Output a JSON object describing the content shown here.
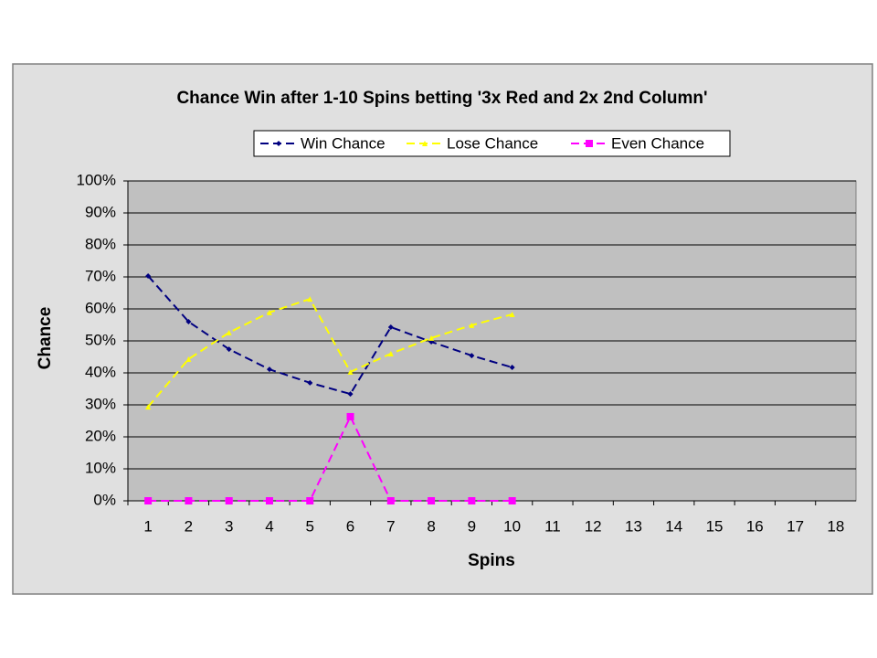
{
  "chart_data": {
    "type": "line",
    "title": "Chance Win after 1-10 Spins betting '3x Red and 2x 2nd Column'",
    "x_label": "Spins",
    "y_label": "Chance",
    "categories": [
      "1",
      "2",
      "3",
      "4",
      "5",
      "6",
      "7",
      "8",
      "9",
      "10",
      "11",
      "12",
      "13",
      "14",
      "15",
      "16",
      "17",
      "18"
    ],
    "series": [
      {
        "name": "Win Chance",
        "color": "#000080",
        "marker": "diamond",
        "values": [
          70.3,
          56,
          47.4,
          41.1,
          36.9,
          33.4,
          54.3,
          49.7,
          45.4,
          41.7,
          null,
          null,
          null,
          null,
          null,
          null,
          null,
          null
        ]
      },
      {
        "name": "Lose Chance",
        "color": "#ffff00",
        "marker": "triangle",
        "values": [
          29.4,
          44.3,
          52.6,
          58.9,
          63.1,
          40.3,
          46,
          50.9,
          54.9,
          58.3,
          null,
          null,
          null,
          null,
          null,
          null,
          null,
          null
        ]
      },
      {
        "name": "Even Chance",
        "color": "#ff00ff",
        "marker": "square",
        "values": [
          0,
          0,
          0,
          0,
          0,
          26.3,
          0,
          0,
          0,
          0,
          null,
          null,
          null,
          null,
          null,
          null,
          null,
          null
        ]
      }
    ],
    "ylim": [
      0,
      100
    ],
    "yticks": [
      {
        "value": 0,
        "label": "0%"
      },
      {
        "value": 10,
        "label": "10%"
      },
      {
        "value": 20,
        "label": "20%"
      },
      {
        "value": 30,
        "label": "30%"
      },
      {
        "value": 40,
        "label": "40%"
      },
      {
        "value": 50,
        "label": "50%"
      },
      {
        "value": 60,
        "label": "60%"
      },
      {
        "value": 70,
        "label": "70%"
      },
      {
        "value": 80,
        "label": "80%"
      },
      {
        "value": 90,
        "label": "90%"
      },
      {
        "value": 100,
        "label": "100%"
      }
    ],
    "grid": true,
    "legend": "top"
  }
}
